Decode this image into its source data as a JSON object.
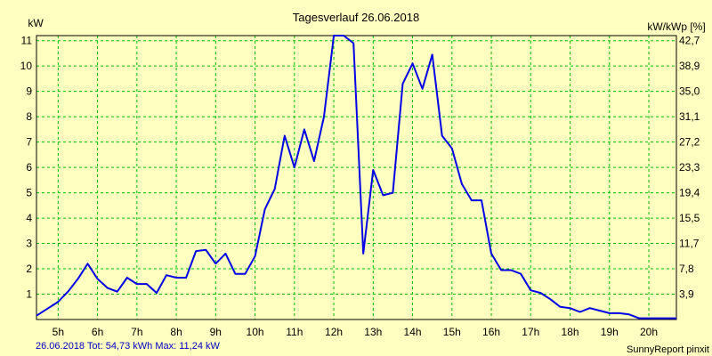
{
  "chart_data": {
    "type": "line",
    "title": "Tagesverlauf 26.06.2018",
    "ylabel_left": "kW",
    "ylabel_right": "kW/kWp [%]",
    "xlim": [
      4.45,
      20.7
    ],
    "ylim": [
      0,
      11.2
    ],
    "x_ticks": [
      {
        "v": 5,
        "label": "5h"
      },
      {
        "v": 6,
        "label": "6h"
      },
      {
        "v": 7,
        "label": "7h"
      },
      {
        "v": 8,
        "label": "8h"
      },
      {
        "v": 9,
        "label": "9h"
      },
      {
        "v": 10,
        "label": "10h"
      },
      {
        "v": 11,
        "label": "11h"
      },
      {
        "v": 12,
        "label": "12h"
      },
      {
        "v": 13,
        "label": "13h"
      },
      {
        "v": 14,
        "label": "14h"
      },
      {
        "v": 15,
        "label": "15h"
      },
      {
        "v": 16,
        "label": "16h"
      },
      {
        "v": 17,
        "label": "17h"
      },
      {
        "v": 18,
        "label": "18h"
      },
      {
        "v": 19,
        "label": "19h"
      },
      {
        "v": 20,
        "label": "20h"
      }
    ],
    "y_ticks_left": [
      {
        "v": 1,
        "label": "1"
      },
      {
        "v": 2,
        "label": "2"
      },
      {
        "v": 3,
        "label": "3"
      },
      {
        "v": 4,
        "label": "4"
      },
      {
        "v": 5,
        "label": "5"
      },
      {
        "v": 6,
        "label": "6"
      },
      {
        "v": 7,
        "label": "7"
      },
      {
        "v": 8,
        "label": "8"
      },
      {
        "v": 9,
        "label": "9"
      },
      {
        "v": 10,
        "label": "10"
      },
      {
        "v": 11,
        "label": "11"
      }
    ],
    "y_ticks_right": [
      {
        "v": 1,
        "label": "3,9"
      },
      {
        "v": 2,
        "label": "7,8"
      },
      {
        "v": 3,
        "label": "11,7"
      },
      {
        "v": 4,
        "label": "15,5"
      },
      {
        "v": 5,
        "label": "19,4"
      },
      {
        "v": 6,
        "label": "23,3"
      },
      {
        "v": 7,
        "label": "27,2"
      },
      {
        "v": 8,
        "label": "31,1"
      },
      {
        "v": 9,
        "label": "35,0"
      },
      {
        "v": 10,
        "label": "38,9"
      },
      {
        "v": 11,
        "label": "42,7"
      }
    ],
    "series": [
      {
        "name": "kW",
        "color": "#0000e6",
        "x": [
          4.45,
          4.75,
          5.0,
          5.25,
          5.5,
          5.75,
          6.0,
          6.25,
          6.5,
          6.75,
          7.0,
          7.25,
          7.5,
          7.75,
          8.0,
          8.25,
          8.5,
          8.75,
          9.0,
          9.25,
          9.5,
          9.75,
          10.0,
          10.25,
          10.5,
          10.75,
          11.0,
          11.25,
          11.5,
          11.75,
          12.0,
          12.25,
          12.5,
          12.75,
          13.0,
          13.25,
          13.5,
          13.75,
          14.0,
          14.25,
          14.5,
          14.75,
          15.0,
          15.25,
          15.5,
          15.75,
          16.0,
          16.25,
          16.5,
          16.75,
          17.0,
          17.25,
          17.5,
          17.75,
          18.0,
          18.25,
          18.5,
          18.75,
          19.0,
          19.25,
          19.5,
          19.75,
          20.0,
          20.25,
          20.5,
          20.7
        ],
        "y": [
          0.15,
          0.45,
          0.7,
          1.1,
          1.6,
          2.2,
          1.6,
          1.25,
          1.1,
          1.65,
          1.4,
          1.4,
          1.05,
          1.75,
          1.65,
          1.65,
          2.7,
          2.75,
          2.2,
          2.6,
          1.8,
          1.8,
          2.5,
          4.35,
          5.15,
          7.25,
          6.0,
          7.5,
          6.25,
          8.0,
          11.2,
          11.2,
          10.9,
          2.6,
          5.9,
          4.9,
          5.0,
          9.3,
          10.1,
          9.1,
          10.45,
          7.25,
          6.75,
          5.35,
          4.7,
          4.7,
          2.6,
          1.95,
          1.95,
          1.8,
          1.15,
          1.05,
          0.8,
          0.5,
          0.45,
          0.3,
          0.45,
          0.35,
          0.25,
          0.25,
          0.2,
          0.05,
          0.05,
          0.05,
          0.05,
          0.05
        ]
      }
    ]
  },
  "footer": {
    "summary": "26.06.2018 Tot: 54,73 kWh Max: 11,24 kW",
    "credit": "SunnyReport pinxit"
  },
  "colors": {
    "background": "#ffffc0",
    "grid": "#00c000",
    "line": "#0000e6",
    "footer_text": "#0000c8"
  }
}
